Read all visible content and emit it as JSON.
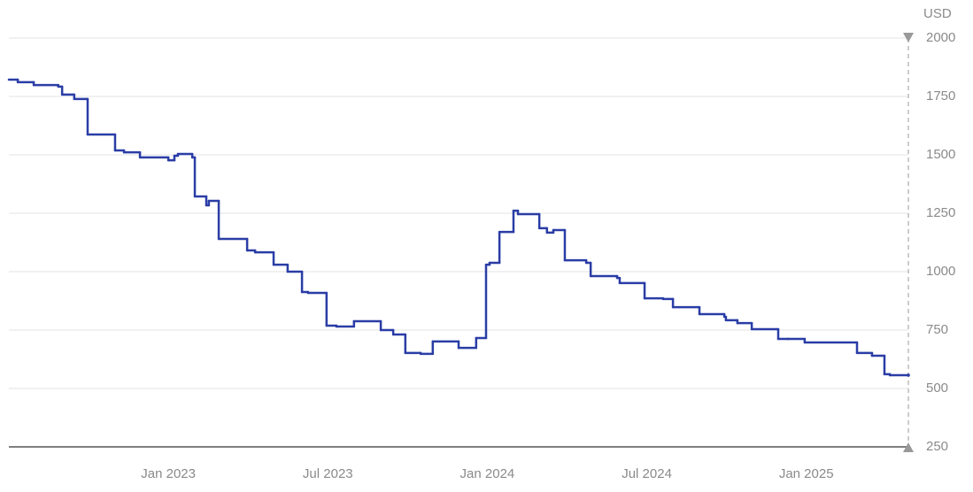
{
  "chart_data": {
    "type": "step",
    "unit_label": "USD",
    "color": "#2a3da6",
    "grid": true,
    "x": [
      2022.5,
      2022.528,
      2022.578,
      2022.655,
      2022.667,
      2022.705,
      2022.747,
      2022.833,
      2022.861,
      2022.911,
      2023.0,
      2023.019,
      2023.03,
      2023.075,
      2023.083,
      2023.119,
      2023.127,
      2023.158,
      2023.247,
      2023.272,
      2023.33,
      2023.374,
      2023.419,
      2023.438,
      2023.496,
      2023.527,
      2023.582,
      2023.666,
      2023.705,
      2023.743,
      2023.791,
      2023.829,
      2023.91,
      2023.965,
      2023.996,
      2024.007,
      2024.038,
      2024.082,
      2024.096,
      2024.163,
      2024.187,
      2024.207,
      2024.243,
      2024.31,
      2024.324,
      2024.407,
      2024.415,
      2024.493,
      2024.551,
      2024.582,
      2024.665,
      2024.743,
      2024.748,
      2024.784,
      2024.829,
      2024.912,
      2024.942,
      2024.995,
      2025.159,
      2025.206,
      2025.245,
      2025.262,
      2025.32
    ],
    "values": [
      1822,
      1811,
      1799,
      1792,
      1758,
      1739,
      1587,
      1519,
      1511,
      1489,
      1477,
      1496,
      1504,
      1489,
      1322,
      1284,
      1303,
      1140,
      1091,
      1083,
      1030,
      1000,
      913,
      909,
      769,
      765,
      788,
      750,
      731,
      652,
      648,
      701,
      674,
      716,
      1030,
      1038,
      1170,
      1261,
      1246,
      1186,
      1167,
      1178,
      1049,
      1038,
      981,
      973,
      951,
      886,
      883,
      848,
      818,
      807,
      792,
      780,
      754,
      712,
      712,
      697,
      652,
      640,
      561,
      557,
      557
    ],
    "xlim": [
      2022.5,
      2025.32
    ],
    "xticks": [
      {
        "value": 2023.0,
        "label": "Jan 2023"
      },
      {
        "value": 2023.5,
        "label": "Jul 2023"
      },
      {
        "value": 2024.0,
        "label": "Jan 2024"
      },
      {
        "value": 2024.5,
        "label": "Jul 2024"
      },
      {
        "value": 2025.0,
        "label": "Jan 2025"
      }
    ],
    "ylim": [
      250,
      2000
    ],
    "yticks": [
      250,
      500,
      750,
      1000,
      1250,
      1500,
      1750,
      2000
    ]
  }
}
